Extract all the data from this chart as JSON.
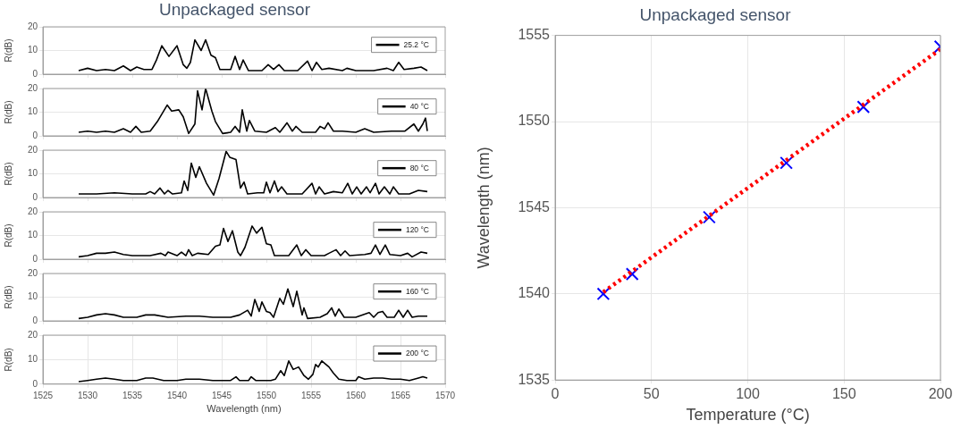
{
  "chart_data": [
    {
      "type": "line",
      "title": "Unpackaged sensor",
      "ylabel": "R(dB)",
      "xlim": [
        1525,
        1570
      ],
      "xticks": [
        1525,
        1530,
        1535,
        1540,
        1545,
        1550,
        1555,
        1560,
        1565,
        1570
      ],
      "ylim": [
        0,
        20
      ],
      "yticks": [
        0,
        10,
        20
      ],
      "grid": "y",
      "legend": "right",
      "tick_labels": "y",
      "x": [
        1529,
        1530,
        1531,
        1532,
        1533,
        1534,
        1534.8,
        1535.5,
        1536.3,
        1537.2,
        1537.7,
        1538.3,
        1539.1,
        1540,
        1540.7,
        1541.1,
        1541.5,
        1542,
        1542.7,
        1543.2,
        1543.8,
        1544.3,
        1544.8,
        1546,
        1546.5,
        1547,
        1547.4,
        1548,
        1549.5,
        1550.2,
        1550.8,
        1551.4,
        1552,
        1553.5,
        1554.6,
        1555.1,
        1555.6,
        1556.2,
        1557,
        1558.5,
        1559,
        1560,
        1562,
        1563.5,
        1564.2,
        1564.8,
        1565.4,
        1566.5,
        1567.3,
        1568
      ],
      "series": [
        {
          "name": "25.2 °C",
          "color": "#000000",
          "values": [
            1.5,
            2.5,
            1.5,
            2,
            1.5,
            3.5,
            1.5,
            3,
            2,
            2,
            6,
            12,
            7.5,
            12,
            4,
            2.5,
            5,
            14.5,
            10,
            14.5,
            8,
            7,
            2,
            2,
            7.5,
            2,
            6,
            1.5,
            1.5,
            4,
            2,
            4,
            1.5,
            1.5,
            5.5,
            1.5,
            5,
            2,
            2.5,
            1.5,
            2.5,
            1.5,
            1.5,
            2.5,
            1.5,
            5,
            2,
            2.5,
            3,
            1.5
          ]
        }
      ]
    },
    {
      "type": "line",
      "ylabel": "R(dB)",
      "xlim": [
        1525,
        1570
      ],
      "xticks": [
        1525,
        1530,
        1535,
        1540,
        1545,
        1550,
        1555,
        1560,
        1565,
        1570
      ],
      "ylim": [
        0,
        20
      ],
      "yticks": [
        0,
        10,
        20
      ],
      "grid": "y",
      "legend": "right",
      "tick_labels": "y",
      "x": [
        1529,
        1530,
        1531,
        1532,
        1533,
        1534,
        1534.8,
        1535.4,
        1536,
        1537,
        1537.8,
        1538.9,
        1539.4,
        1540.2,
        1540.7,
        1541.3,
        1542,
        1542.3,
        1542.8,
        1543.2,
        1543.9,
        1544.3,
        1545.1,
        1546,
        1546.5,
        1547,
        1547.3,
        1547.8,
        1548.1,
        1548.7,
        1550,
        1551,
        1551.5,
        1552.3,
        1552.9,
        1553.3,
        1554,
        1555.5,
        1556,
        1556.5,
        1556.9,
        1557.5,
        1558.5,
        1560,
        1561,
        1562,
        1564,
        1565.5,
        1566.5,
        1567,
        1567.5,
        1567.8,
        1568
      ],
      "series": [
        {
          "name": "40 °C",
          "color": "#000000",
          "values": [
            1.5,
            2,
            1.5,
            2,
            1.5,
            3,
            1.5,
            4,
            1.5,
            2,
            6,
            13,
            10.5,
            11,
            8,
            1,
            5,
            19,
            11,
            20,
            10.5,
            6,
            1,
            1.5,
            4,
            1.5,
            11,
            2,
            6.5,
            2,
            1.5,
            3.5,
            1.5,
            5.5,
            2,
            4,
            1.5,
            1.5,
            4,
            3,
            5.5,
            2,
            2,
            1.5,
            3,
            1.5,
            2,
            2,
            5,
            2,
            5,
            7.5,
            2
          ]
        }
      ]
    },
    {
      "type": "line",
      "ylabel": "R(dB)",
      "xlim": [
        1525,
        1570
      ],
      "xticks": [
        1525,
        1530,
        1535,
        1540,
        1545,
        1550,
        1555,
        1560,
        1565,
        1570
      ],
      "ylim": [
        0,
        20
      ],
      "yticks": [
        0,
        10,
        20
      ],
      "grid": "y",
      "legend": "right",
      "tick_labels": "y",
      "x": [
        1529,
        1531,
        1533,
        1535,
        1536.5,
        1537,
        1537.5,
        1538.1,
        1538.6,
        1539,
        1539.5,
        1540.5,
        1540.8,
        1541.2,
        1541.6,
        1542.1,
        1542.5,
        1543.3,
        1544.1,
        1544.7,
        1545.5,
        1545.9,
        1546.6,
        1547.1,
        1547.5,
        1547.9,
        1549,
        1549.7,
        1550,
        1550.4,
        1550.9,
        1551.3,
        1551.7,
        1552.3,
        1554,
        1555.1,
        1555.5,
        1555.9,
        1556.5,
        1557.5,
        1558.5,
        1559.1,
        1559.6,
        1560.1,
        1560.6,
        1561.2,
        1561.6,
        1562.2,
        1562.6,
        1563.2,
        1563.8,
        1564.2,
        1564.8,
        1566,
        1567,
        1568
      ],
      "series": [
        {
          "name": "80 °C",
          "color": "#000000",
          "values": [
            1.5,
            1.5,
            2,
            1.5,
            1.5,
            2.5,
            1.5,
            4,
            1.5,
            3,
            1.5,
            2,
            7,
            3,
            14.5,
            8.5,
            13,
            6,
            1,
            8,
            19.5,
            17,
            16,
            4,
            6.5,
            1.5,
            2,
            2,
            6.5,
            2,
            7,
            2.5,
            4.5,
            1.5,
            1.5,
            6,
            1.5,
            4.5,
            1.5,
            2.5,
            2,
            6,
            1.5,
            4.5,
            1.5,
            4.5,
            2,
            6,
            1.5,
            4.5,
            1.5,
            4.5,
            1.5,
            1.5,
            3,
            2.5
          ]
        }
      ]
    },
    {
      "type": "line",
      "ylabel": "R(dB)",
      "xlim": [
        1525,
        1570
      ],
      "xticks": [
        1525,
        1530,
        1535,
        1540,
        1545,
        1550,
        1555,
        1560,
        1565,
        1570
      ],
      "ylim": [
        0,
        20
      ],
      "yticks": [
        0,
        10,
        20
      ],
      "grid": "y",
      "legend": "right",
      "tick_labels": "y",
      "x": [
        1529,
        1530,
        1531,
        1532,
        1533,
        1534,
        1535,
        1537,
        1538.2,
        1538.7,
        1539,
        1540,
        1540.5,
        1541,
        1541.3,
        1541.7,
        1542.3,
        1543.5,
        1544.3,
        1544.8,
        1545.2,
        1545.7,
        1546.2,
        1546.8,
        1547.1,
        1547.6,
        1548.4,
        1548.9,
        1549.5,
        1550,
        1550.5,
        1550.9,
        1552.5,
        1553.4,
        1553.9,
        1554.4,
        1555,
        1556.5,
        1557,
        1557.8,
        1558.3,
        1558.8,
        1559.3,
        1561,
        1561.7,
        1562.2,
        1562.7,
        1563.3,
        1563.8,
        1565,
        1565.8,
        1566.3,
        1567.3,
        1568
      ],
      "series": [
        {
          "name": "120 °C",
          "color": "#000000",
          "values": [
            1,
            1.5,
            2.5,
            2.5,
            3,
            2,
            1.5,
            1.5,
            2.5,
            1.5,
            3,
            1.5,
            3,
            1.5,
            4,
            1.5,
            2.5,
            2,
            5.5,
            6,
            13,
            7.5,
            12,
            3,
            1.5,
            5,
            14,
            11,
            13.5,
            6.5,
            6,
            1.5,
            1.5,
            6,
            1.5,
            4,
            1.5,
            1.5,
            2.5,
            4,
            1.5,
            3.5,
            1.5,
            2,
            2.5,
            6,
            2,
            6,
            2,
            1.5,
            2.5,
            1,
            3,
            2.5
          ]
        }
      ]
    },
    {
      "type": "line",
      "ylabel": "R(dB)",
      "xlim": [
        1525,
        1570
      ],
      "xticks": [
        1525,
        1530,
        1535,
        1540,
        1545,
        1550,
        1555,
        1560,
        1565,
        1570
      ],
      "ylim": [
        0,
        20
      ],
      "yticks": [
        0,
        10,
        20
      ],
      "grid": "y",
      "legend": "right",
      "tick_labels": "y",
      "x": [
        1529,
        1530,
        1531,
        1532,
        1533,
        1534,
        1535.5,
        1536.5,
        1537.5,
        1539,
        1541,
        1542.5,
        1544,
        1546,
        1547,
        1547.9,
        1548.3,
        1548.7,
        1549.2,
        1549.5,
        1550,
        1550.4,
        1550.8,
        1551.5,
        1551.9,
        1552.4,
        1553,
        1553.4,
        1554,
        1554.2,
        1554.6,
        1556,
        1556.8,
        1557.3,
        1557.7,
        1558.1,
        1558.7,
        1560,
        1561.5,
        1562,
        1562.5,
        1563,
        1563.5,
        1564.3,
        1564.8,
        1565.3,
        1565.8,
        1566.3,
        1567,
        1568
      ],
      "series": [
        {
          "name": "160 °C",
          "color": "#000000",
          "values": [
            1,
            1.5,
            2.5,
            3,
            2.5,
            1.5,
            1.5,
            2.5,
            2.5,
            1.5,
            2,
            2,
            1.5,
            1.5,
            2.5,
            4.5,
            2,
            9,
            4,
            8,
            4,
            3.5,
            1.5,
            9.5,
            7,
            13.5,
            6,
            12.5,
            2.5,
            5.5,
            1,
            1.5,
            3,
            5.5,
            2,
            5,
            1.5,
            1.5,
            3.5,
            1.5,
            3.5,
            4,
            1.5,
            1.5,
            4.5,
            1.5,
            4.5,
            1.5,
            2,
            2
          ]
        }
      ]
    },
    {
      "type": "line",
      "ylabel": "R(dB)",
      "xlabel": "Wavelength (nm)",
      "xlim": [
        1525,
        1570
      ],
      "xticks": [
        1525,
        1530,
        1535,
        1540,
        1545,
        1550,
        1555,
        1560,
        1565,
        1570
      ],
      "ylim": [
        0,
        20
      ],
      "yticks": [
        0,
        10,
        20
      ],
      "grid": true,
      "legend": "right",
      "x": [
        1529,
        1530,
        1531,
        1532,
        1533,
        1534,
        1535.5,
        1536.5,
        1537.3,
        1538.5,
        1540,
        1541,
        1542.5,
        1544,
        1546,
        1546.6,
        1547,
        1548,
        1548.3,
        1548.8,
        1550.5,
        1551,
        1551.6,
        1552,
        1552.5,
        1553,
        1553.6,
        1554.2,
        1554.7,
        1555.2,
        1555.5,
        1555.8,
        1556.2,
        1557,
        1557.5,
        1558.1,
        1559,
        1560,
        1560.3,
        1561,
        1562,
        1563,
        1564,
        1565,
        1566,
        1567,
        1567.5,
        1568
      ],
      "series": [
        {
          "name": "200 °C",
          "color": "#000000",
          "values": [
            1,
            1.5,
            2,
            2.5,
            2,
            1.5,
            1.5,
            2.5,
            2.5,
            1.5,
            1.5,
            2,
            2,
            1.5,
            1.5,
            3,
            1.5,
            1.5,
            3,
            1.5,
            1.5,
            2,
            5.5,
            3.5,
            9.5,
            6,
            7,
            3.5,
            2,
            4,
            8,
            7,
            9.5,
            7,
            4.5,
            2,
            1.5,
            1.5,
            3,
            2,
            2.5,
            2.5,
            2,
            2,
            1.5,
            2.5,
            3,
            2.5
          ]
        }
      ]
    },
    {
      "type": "scatter",
      "title": "Unpackaged sensor",
      "xlabel": "Temperature (°C)",
      "ylabel": "Wavelength (nm)",
      "xlim": [
        0,
        200
      ],
      "xticks": [
        0,
        50,
        100,
        150,
        200
      ],
      "ylim": [
        1535,
        1555
      ],
      "yticks": [
        1535,
        1540,
        1545,
        1550,
        1555
      ],
      "grid": true,
      "series": [
        {
          "type": "line",
          "color": "#ff0000",
          "line_style": "dotted",
          "marker": "none",
          "x": [
            25,
            200
          ],
          "values": [
            1540.1,
            1554.2
          ]
        },
        {
          "type": "scatter",
          "color": "#0000ff",
          "marker": "cross",
          "x": [
            25,
            40,
            80,
            120,
            160,
            200
          ],
          "values": [
            1540,
            1541.15,
            1544.45,
            1547.6,
            1550.85,
            1554.35
          ]
        }
      ]
    }
  ]
}
